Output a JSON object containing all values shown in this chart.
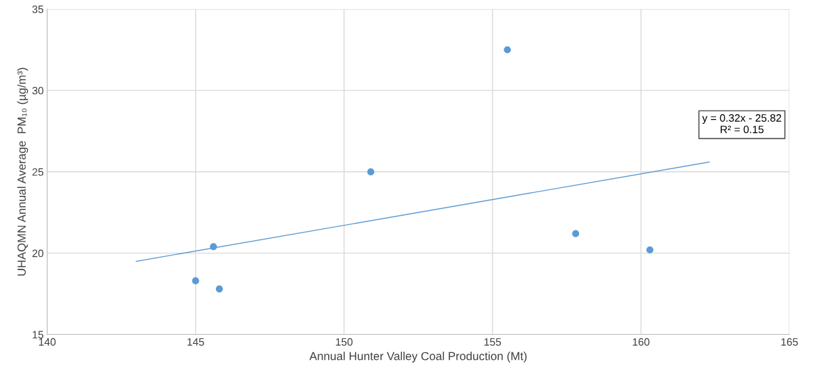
{
  "chart_data": {
    "type": "scatter",
    "xlabel": "Annual Hunter Valley Coal Production (Mt)",
    "ylabel": "UHAQMN Annual Average  PM₁₀ (µg/m³)",
    "series": [
      {
        "color": "#5b9bd5",
        "x": [
          145.0,
          145.6,
          145.8,
          150.9,
          155.5,
          157.8,
          160.3
        ],
        "values": [
          18.3,
          20.4,
          17.8,
          25.0,
          32.5,
          21.2,
          20.2
        ],
        "marker": "circle"
      },
      {
        "type": "line",
        "color": "#5b9bd5",
        "x": [
          143.0,
          162.3
        ],
        "values": [
          19.5,
          25.6
        ],
        "marker": "none",
        "line_style": "solid"
      }
    ],
    "xlim": [
      140,
      165
    ],
    "xticks": [
      140,
      145,
      150,
      155,
      160,
      165
    ],
    "ylim": [
      15,
      35
    ],
    "yticks": [
      15,
      20,
      25,
      30,
      35
    ],
    "grid": true,
    "annotations": [
      "y = 0.32x - 25.82\nR² = 0.15"
    ]
  }
}
